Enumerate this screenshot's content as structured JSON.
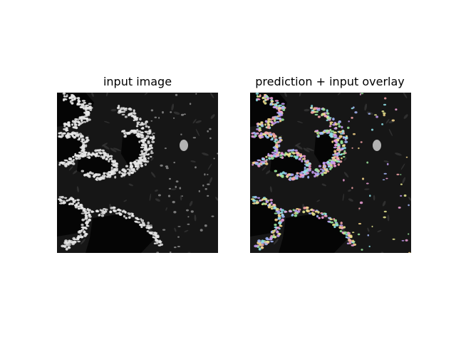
{
  "figure": {
    "panels": [
      {
        "title": "input image"
      },
      {
        "title": "prediction + input overlay"
      }
    ],
    "colors": {
      "background": "#ffffff",
      "tissue_dark": "#161616",
      "lumen": "#050505",
      "nuclei_bright": "#e6e6e6",
      "overlay_palette": [
        "#f4a3a8",
        "#9be59b",
        "#a3b5f5",
        "#f5d58a",
        "#c29bf0",
        "#8fe1e8",
        "#f0a0d8",
        "#e8e890"
      ]
    }
  }
}
